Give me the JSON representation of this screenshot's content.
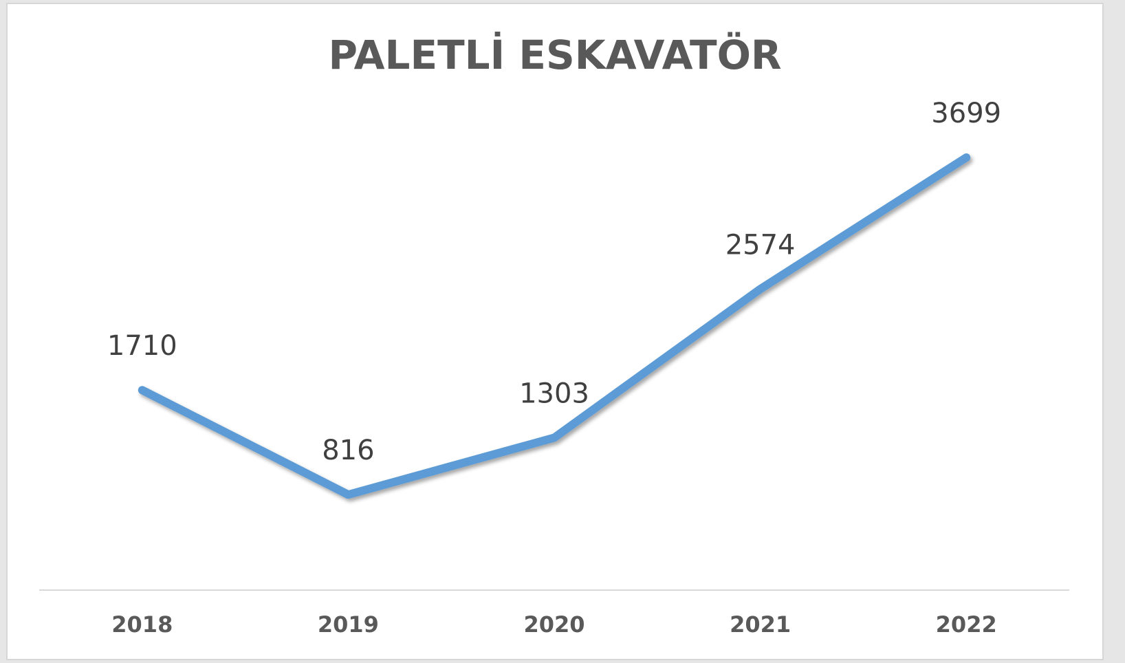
{
  "chart_data": {
    "type": "line",
    "title": "PALETLİ ESKAVATÖR",
    "categories": [
      "2018",
      "2019",
      "2020",
      "2021",
      "2022"
    ],
    "values": [
      1710,
      816,
      1303,
      2574,
      3699
    ],
    "color": "#5b9bd5"
  }
}
